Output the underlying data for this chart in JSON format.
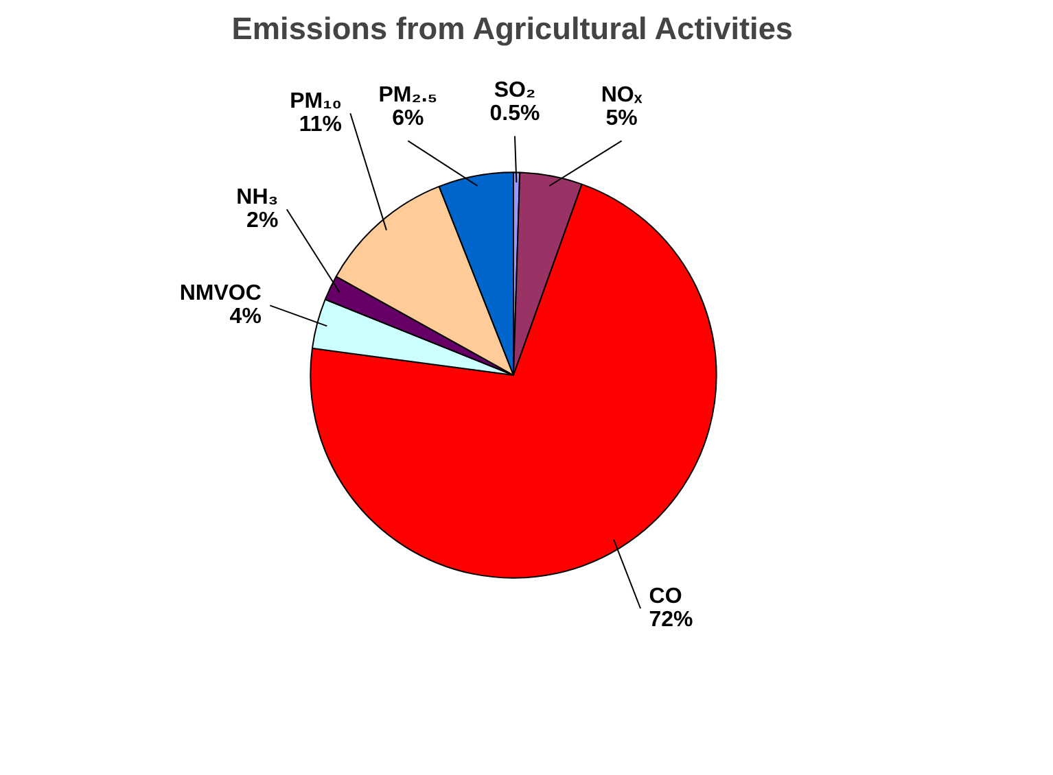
{
  "chart_data": {
    "type": "pie",
    "title": "Emissions from Agricultural Activities",
    "categories": [
      "SO₂",
      "NOₓ",
      "CO",
      "NMVOC",
      "NH₃",
      "PM₁₀",
      "PM₂.₅"
    ],
    "values": [
      0.5,
      5,
      72,
      4,
      2,
      11,
      6
    ],
    "value_labels": [
      "0.5%",
      "5%",
      "72%",
      "4%",
      "2%",
      "11%",
      "6%"
    ],
    "colors": [
      "#9999ff",
      "#993366",
      "#ff0000",
      "#ccffff",
      "#660066",
      "#ffcc99",
      "#0066cc"
    ]
  }
}
